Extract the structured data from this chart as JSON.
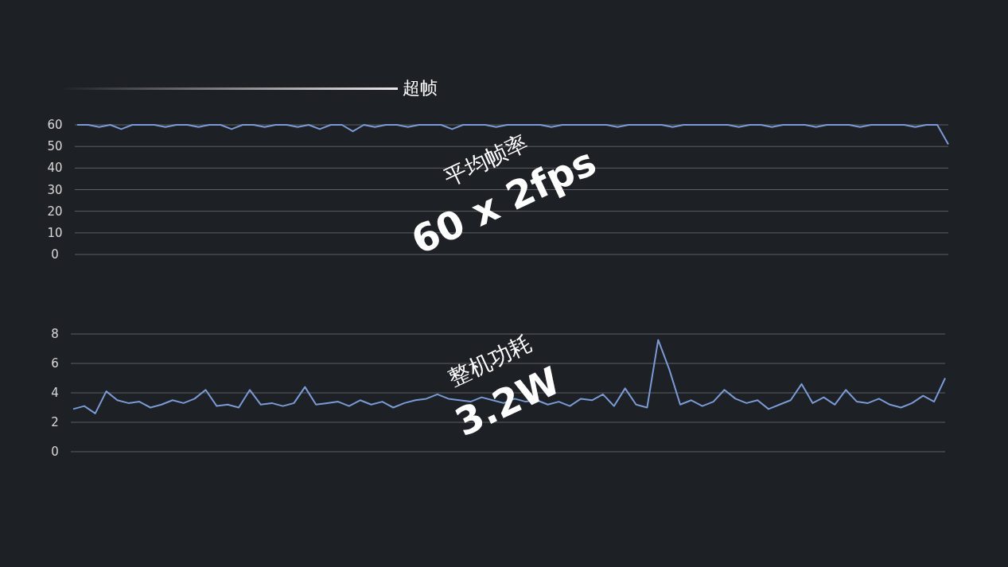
{
  "chart_data": [
    {
      "type": "line",
      "annotations": [
        "超帧",
        "平均帧率",
        "60 x 2fps"
      ],
      "ylim": [
        0,
        60
      ],
      "yticks": [
        0,
        10,
        20,
        30,
        40,
        50,
        60
      ],
      "grid": "y",
      "marker": "none",
      "line_style": "solid",
      "categories": [
        null,
        null,
        null,
        null,
        null,
        null,
        null,
        null,
        null,
        null,
        null,
        null,
        null,
        null,
        null,
        null,
        null,
        null,
        null,
        null,
        null,
        null,
        null,
        null,
        null,
        null,
        null,
        null,
        null,
        null,
        null,
        null,
        null,
        null,
        null,
        null,
        null,
        null,
        null,
        null,
        null,
        null,
        null,
        null,
        null,
        null,
        null,
        null,
        null,
        null,
        null,
        null,
        null,
        null,
        null,
        null,
        null,
        null,
        null,
        null,
        null,
        null,
        null,
        null,
        null,
        null,
        null,
        null,
        null,
        null,
        null,
        null,
        null,
        null,
        null,
        null,
        null,
        null,
        null,
        null
      ],
      "series": [
        {
          "color": "#7b9bd6",
          "values": [
            60,
            60,
            59,
            60,
            58,
            60,
            60,
            60,
            59,
            60,
            60,
            59,
            60,
            60,
            58,
            60,
            60,
            59,
            60,
            60,
            59,
            60,
            58,
            60,
            60,
            57,
            60,
            59,
            60,
            60,
            59,
            60,
            60,
            60,
            58,
            60,
            60,
            60,
            59,
            60,
            60,
            60,
            60,
            59,
            60,
            60,
            60,
            60,
            60,
            59,
            60,
            60,
            60,
            60,
            59,
            60,
            60,
            60,
            60,
            60,
            59,
            60,
            60,
            59,
            60,
            60,
            60,
            59,
            60,
            60,
            60,
            59,
            60,
            60,
            60,
            60,
            59,
            60,
            60,
            51
          ]
        }
      ]
    },
    {
      "type": "line",
      "annotations": [
        "整机功耗",
        "3.2W"
      ],
      "ylim": [
        0,
        8
      ],
      "yticks": [
        0,
        2,
        4,
        6,
        8
      ],
      "grid": "y",
      "marker": "none",
      "line_style": "solid",
      "categories": [
        null,
        null,
        null,
        null,
        null,
        null,
        null,
        null,
        null,
        null,
        null,
        null,
        null,
        null,
        null,
        null,
        null,
        null,
        null,
        null,
        null,
        null,
        null,
        null,
        null,
        null,
        null,
        null,
        null,
        null,
        null,
        null,
        null,
        null,
        null,
        null,
        null,
        null,
        null,
        null,
        null,
        null,
        null,
        null,
        null,
        null,
        null,
        null,
        null,
        null,
        null,
        null,
        null,
        null,
        null,
        null,
        null,
        null,
        null,
        null,
        null,
        null,
        null,
        null,
        null,
        null,
        null,
        null,
        null,
        null,
        null,
        null,
        null,
        null,
        null,
        null,
        null,
        null,
        null,
        null
      ],
      "series": [
        {
          "color": "#7b9bd6",
          "values": [
            2.9,
            3.1,
            2.6,
            4.1,
            3.5,
            3.3,
            3.4,
            3.0,
            3.2,
            3.5,
            3.3,
            3.6,
            4.2,
            3.1,
            3.2,
            3.0,
            4.2,
            3.2,
            3.3,
            3.1,
            3.3,
            4.4,
            3.2,
            3.3,
            3.4,
            3.1,
            3.5,
            3.2,
            3.4,
            3.0,
            3.3,
            3.5,
            3.6,
            3.9,
            3.6,
            3.5,
            3.4,
            3.7,
            3.5,
            3.3,
            3.6,
            3.4,
            3.5,
            3.2,
            3.4,
            3.1,
            3.6,
            3.5,
            3.9,
            3.1,
            4.3,
            3.2,
            3.0,
            7.6,
            5.6,
            3.2,
            3.5,
            3.1,
            3.4,
            4.2,
            3.6,
            3.3,
            3.5,
            2.9,
            3.2,
            3.5,
            4.6,
            3.3,
            3.7,
            3.2,
            4.2,
            3.4,
            3.3,
            3.6,
            3.2,
            3.0,
            3.3,
            3.8,
            3.4,
            5.0
          ]
        }
      ]
    }
  ]
}
